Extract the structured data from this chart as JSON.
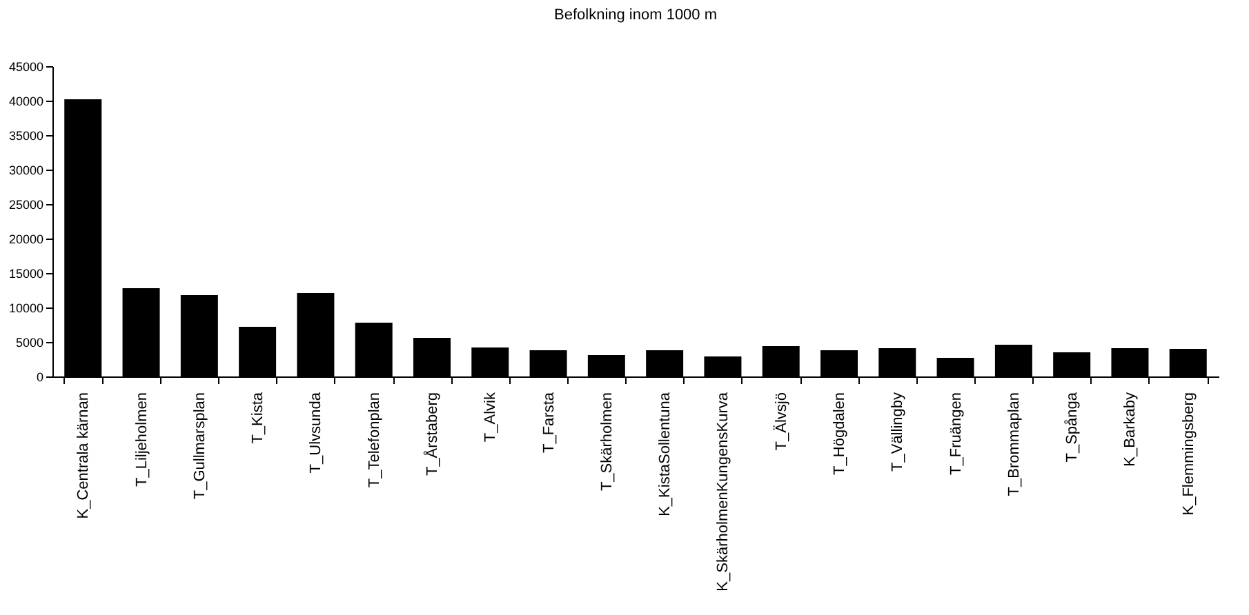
{
  "chart_data": {
    "type": "bar",
    "title": "Befolkning inom 1000 m",
    "categories": [
      "K_Centrala kärnan",
      "T_Liljeholmen",
      "T_Gullmarsplan",
      "T_Kista",
      "T_Ulvsunda",
      "T_Telefonplan",
      "T_Årstaberg",
      "T_Alvik",
      "T_Farsta",
      "T_Skärholmen",
      "K_KistaSollentuna",
      "K_SkärholmenKungensKurva",
      "T_Älvsjö",
      "T_Högdalen",
      "T_Vällingby",
      "T_Fruängen",
      "T_Brommaplan",
      "T_Spånga",
      "K_Barkaby",
      "K_Flemmingsberg"
    ],
    "values": [
      40200,
      12800,
      11800,
      7200,
      12100,
      7800,
      5600,
      4200,
      3800,
      3100,
      3800,
      2900,
      4400,
      3800,
      4100,
      2700,
      4600,
      3500,
      4100,
      4000
    ],
    "color": "#000000",
    "ylim": [
      0,
      45000
    ],
    "yticks": [
      0,
      5000,
      10000,
      15000,
      20000,
      25000,
      30000,
      35000,
      40000,
      45000
    ],
    "grid": false
  }
}
